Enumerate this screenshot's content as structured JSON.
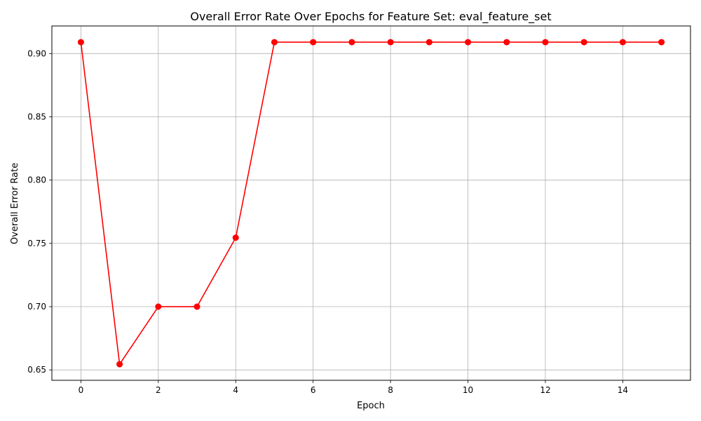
{
  "chart_data": {
    "type": "line",
    "title": "Overall Error Rate Over Epochs for Feature Set: eval_feature_set",
    "xlabel": "Epoch",
    "ylabel": "Overall Error Rate",
    "x": [
      0,
      1,
      2,
      3,
      4,
      5,
      6,
      7,
      8,
      9,
      10,
      11,
      12,
      13,
      14,
      15
    ],
    "series": [
      {
        "values": [
          0.909,
          0.6545,
          0.7,
          0.7,
          0.7545,
          0.909,
          0.909,
          0.909,
          0.909,
          0.909,
          0.909,
          0.909,
          0.909,
          0.909,
          0.909,
          0.909
        ],
        "color": "#ff0000",
        "marker": "circle"
      }
    ],
    "xlim": [
      -0.75,
      15.75
    ],
    "ylim": [
      0.6418,
      0.9218
    ],
    "xticks": [
      0,
      2,
      4,
      6,
      8,
      10,
      12,
      14
    ],
    "xtick_labels": [
      "0",
      "2",
      "4",
      "6",
      "8",
      "10",
      "12",
      "14"
    ],
    "yticks": [
      0.65,
      0.7,
      0.75,
      0.8,
      0.85,
      0.9
    ],
    "ytick_labels": [
      "0.65",
      "0.70",
      "0.75",
      "0.80",
      "0.85",
      "0.90"
    ],
    "grid": true,
    "grid_color": "#b0b0b0",
    "legend": "none"
  }
}
